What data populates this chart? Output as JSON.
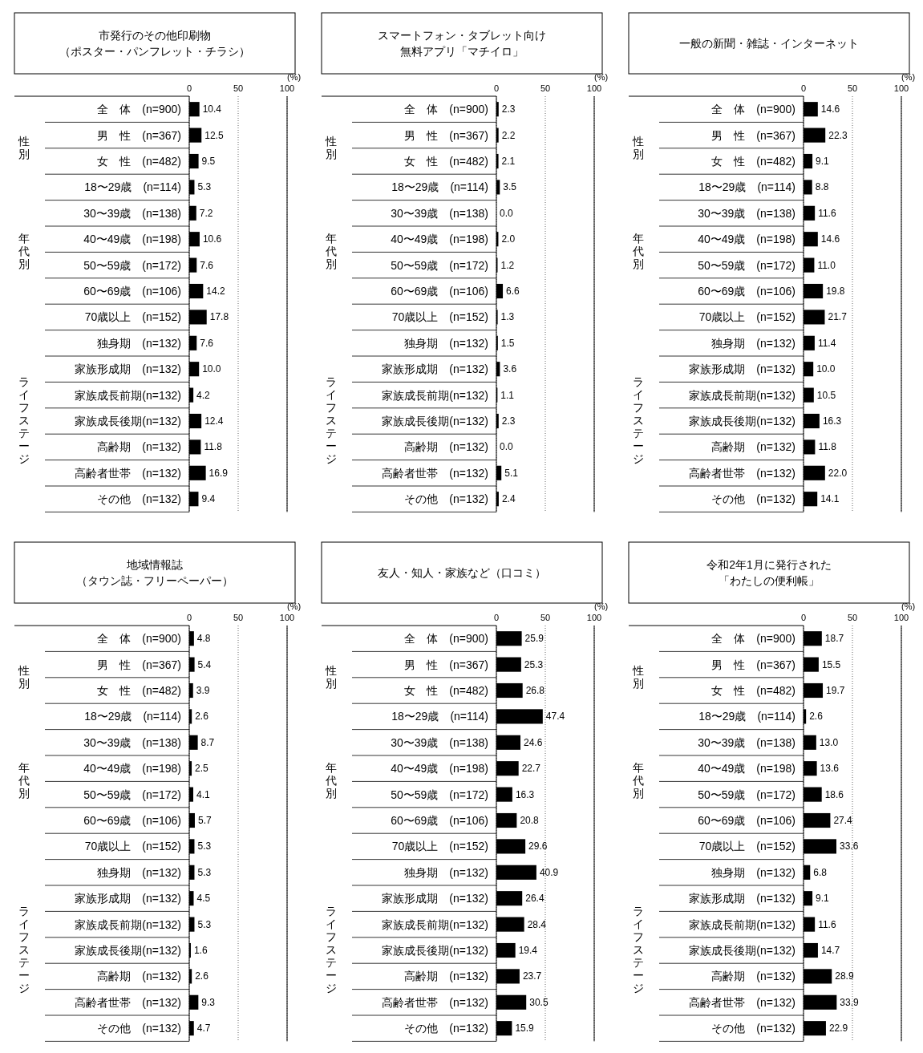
{
  "chart_data": [
    {
      "type": "bar",
      "orientation": "horizontal",
      "title": "市発行のその他印刷物（ポスター・パンフレット・チラシ）",
      "xlabel": "(%)",
      "xlim": [
        0,
        100
      ],
      "xticks": [
        0,
        50,
        100
      ],
      "grid": "x",
      "color": "#000000",
      "categories": [
        "全　体　(n=900)",
        "男　性　(n=367)",
        "女　性　(n=482)",
        "18〜29歳　(n=114)",
        "30〜39歳　(n=138)",
        "40〜49歳　(n=198)",
        "50〜59歳　(n=172)",
        "60〜69歳　(n=106)",
        "70歳以上　(n=152)",
        "独身期　(n=132)",
        "家族形成期　(n=132)",
        "家族成長前期(n=132)",
        "家族成長後期(n=132)",
        "高齢期　(n=132)",
        "高齢者世帯　(n=132)",
        "その他　(n=132)"
      ],
      "values": [
        10.4,
        12.5,
        9.5,
        5.3,
        7.2,
        10.6,
        7.6,
        14.2,
        17.8,
        7.6,
        10.0,
        4.2,
        12.4,
        11.8,
        16.9,
        9.4
      ],
      "value_labels": [
        "10.4",
        "12.5",
        "9.5",
        "5.3",
        "7.2",
        "10.6",
        "7.6",
        "14.2",
        "17.8",
        "7.6",
        "10.0",
        "4.2",
        "12.4",
        "11.8",
        "16.9",
        "9.4"
      ],
      "annotations": [
        "性別",
        "年代別",
        "ライフステージ"
      ]
    },
    {
      "type": "bar",
      "orientation": "horizontal",
      "title": "スマートフォン・タブレット向け無料アプリ「マチイロ」",
      "xlabel": "(%)",
      "xlim": [
        0,
        100
      ],
      "xticks": [
        0,
        50,
        100
      ],
      "grid": "x",
      "color": "#000000",
      "categories": [
        "全　体　(n=900)",
        "男　性　(n=367)",
        "女　性　(n=482)",
        "18〜29歳　(n=114)",
        "30〜39歳　(n=138)",
        "40〜49歳　(n=198)",
        "50〜59歳　(n=172)",
        "60〜69歳　(n=106)",
        "70歳以上　(n=152)",
        "独身期　(n=132)",
        "家族形成期　(n=132)",
        "家族成長前期(n=132)",
        "家族成長後期(n=132)",
        "高齢期　(n=132)",
        "高齢者世帯　(n=132)",
        "その他　(n=132)"
      ],
      "values": [
        2.3,
        2.2,
        2.1,
        3.5,
        0.0,
        2.0,
        1.2,
        6.6,
        1.3,
        1.5,
        3.6,
        1.1,
        2.3,
        0.0,
        5.1,
        2.4
      ],
      "value_labels": [
        "2.3",
        "2.2",
        "2.1",
        "3.5",
        "0.0",
        "2.0",
        "1.2",
        "6.6",
        "1.3",
        "1.5",
        "3.6",
        "1.1",
        "2.3",
        "0.0",
        "5.1",
        "2.4"
      ],
      "annotations": [
        "性別",
        "年代別",
        "ライフステージ"
      ]
    },
    {
      "type": "bar",
      "orientation": "horizontal",
      "title": "一般の新聞・雑誌・インターネット",
      "xlabel": "(%)",
      "xlim": [
        0,
        100
      ],
      "xticks": [
        0,
        50,
        100
      ],
      "grid": "x",
      "color": "#000000",
      "categories": [
        "全　体　(n=900)",
        "男　性　(n=367)",
        "女　性　(n=482)",
        "18〜29歳　(n=114)",
        "30〜39歳　(n=138)",
        "40〜49歳　(n=198)",
        "50〜59歳　(n=172)",
        "60〜69歳　(n=106)",
        "70歳以上　(n=152)",
        "独身期　(n=132)",
        "家族形成期　(n=132)",
        "家族成長前期(n=132)",
        "家族成長後期(n=132)",
        "高齢期　(n=132)",
        "高齢者世帯　(n=132)",
        "その他　(n=132)"
      ],
      "values": [
        14.6,
        22.3,
        9.1,
        8.8,
        11.6,
        14.6,
        11.0,
        19.8,
        21.7,
        11.4,
        10.0,
        10.5,
        16.3,
        11.8,
        22.0,
        14.1
      ],
      "value_labels": [
        "14.6",
        "22.3",
        "9.1",
        "8.8",
        "11.6",
        "14.6",
        "11.0",
        "19.8",
        "21.7",
        "11.4",
        "10.0",
        "10.5",
        "16.3",
        "11.8",
        "22.0",
        "14.1"
      ],
      "annotations": [
        "性別",
        "年代別",
        "ライフステージ"
      ]
    },
    {
      "type": "bar",
      "orientation": "horizontal",
      "title": "地域情報誌（タウン誌・フリーペーパー）",
      "xlabel": "(%)",
      "xlim": [
        0,
        100
      ],
      "xticks": [
        0,
        50,
        100
      ],
      "grid": "x",
      "color": "#000000",
      "categories": [
        "全　体　(n=900)",
        "男　性　(n=367)",
        "女　性　(n=482)",
        "18〜29歳　(n=114)",
        "30〜39歳　(n=138)",
        "40〜49歳　(n=198)",
        "50〜59歳　(n=172)",
        "60〜69歳　(n=106)",
        "70歳以上　(n=152)",
        "独身期　(n=132)",
        "家族形成期　(n=132)",
        "家族成長前期(n=132)",
        "家族成長後期(n=132)",
        "高齢期　(n=132)",
        "高齢者世帯　(n=132)",
        "その他　(n=132)"
      ],
      "values": [
        4.8,
        5.4,
        3.9,
        2.6,
        8.7,
        2.5,
        4.1,
        5.7,
        5.3,
        5.3,
        4.5,
        5.3,
        1.6,
        2.6,
        9.3,
        4.7
      ],
      "value_labels": [
        "4.8",
        "5.4",
        "3.9",
        "2.6",
        "8.7",
        "2.5",
        "4.1",
        "5.7",
        "5.3",
        "5.3",
        "4.5",
        "5.3",
        "1.6",
        "2.6",
        "9.3",
        "4.7"
      ],
      "annotations": [
        "性別",
        "年代別",
        "ライフステージ"
      ]
    },
    {
      "type": "bar",
      "orientation": "horizontal",
      "title": "友人・知人・家族など（口コミ）",
      "xlabel": "(%)",
      "xlim": [
        0,
        100
      ],
      "xticks": [
        0,
        50,
        100
      ],
      "grid": "x",
      "color": "#000000",
      "categories": [
        "全　体　(n=900)",
        "男　性　(n=367)",
        "女　性　(n=482)",
        "18〜29歳　(n=114)",
        "30〜39歳　(n=138)",
        "40〜49歳　(n=198)",
        "50〜59歳　(n=172)",
        "60〜69歳　(n=106)",
        "70歳以上　(n=152)",
        "独身期　(n=132)",
        "家族形成期　(n=132)",
        "家族成長前期(n=132)",
        "家族成長後期(n=132)",
        "高齢期　(n=132)",
        "高齢者世帯　(n=132)",
        "その他　(n=132)"
      ],
      "values": [
        25.9,
        25.3,
        26.8,
        47.4,
        24.6,
        22.7,
        16.3,
        20.8,
        29.6,
        40.9,
        26.4,
        28.4,
        19.4,
        23.7,
        30.5,
        15.9
      ],
      "value_labels": [
        "25.9",
        "25.3",
        "26.8",
        "47.4",
        "24.6",
        "22.7",
        "16.3",
        "20.8",
        "29.6",
        "40.9",
        "26.4",
        "28.4",
        "19.4",
        "23.7",
        "30.5",
        "15.9"
      ],
      "annotations": [
        "性別",
        "年代別",
        "ライフステージ"
      ]
    },
    {
      "type": "bar",
      "orientation": "horizontal",
      "title": "令和2年1月に発行された「わたしの便利帳」",
      "xlabel": "(%)",
      "xlim": [
        0,
        100
      ],
      "xticks": [
        0,
        50,
        100
      ],
      "grid": "x",
      "color": "#000000",
      "categories": [
        "全　体　(n=900)",
        "男　性　(n=367)",
        "女　性　(n=482)",
        "18〜29歳　(n=114)",
        "30〜39歳　(n=138)",
        "40〜49歳　(n=198)",
        "50〜59歳　(n=172)",
        "60〜69歳　(n=106)",
        "70歳以上　(n=152)",
        "独身期　(n=132)",
        "家族形成期　(n=132)",
        "家族成長前期(n=132)",
        "家族成長後期(n=132)",
        "高齢期　(n=132)",
        "高齢者世帯　(n=132)",
        "その他　(n=132)"
      ],
      "values": [
        18.7,
        15.5,
        19.7,
        2.6,
        13.0,
        13.6,
        18.6,
        27.4,
        33.6,
        6.8,
        9.1,
        11.6,
        14.7,
        28.9,
        33.9,
        22.9
      ],
      "value_labels": [
        "18.7",
        "15.5",
        "19.7",
        "2.6",
        "13.0",
        "13.6",
        "18.6",
        "27.4",
        "33.6",
        "6.8",
        "9.1",
        "11.6",
        "14.7",
        "28.9",
        "33.9",
        "22.9"
      ],
      "annotations": [
        "性別",
        "年代別",
        "ライフステージ"
      ]
    }
  ]
}
